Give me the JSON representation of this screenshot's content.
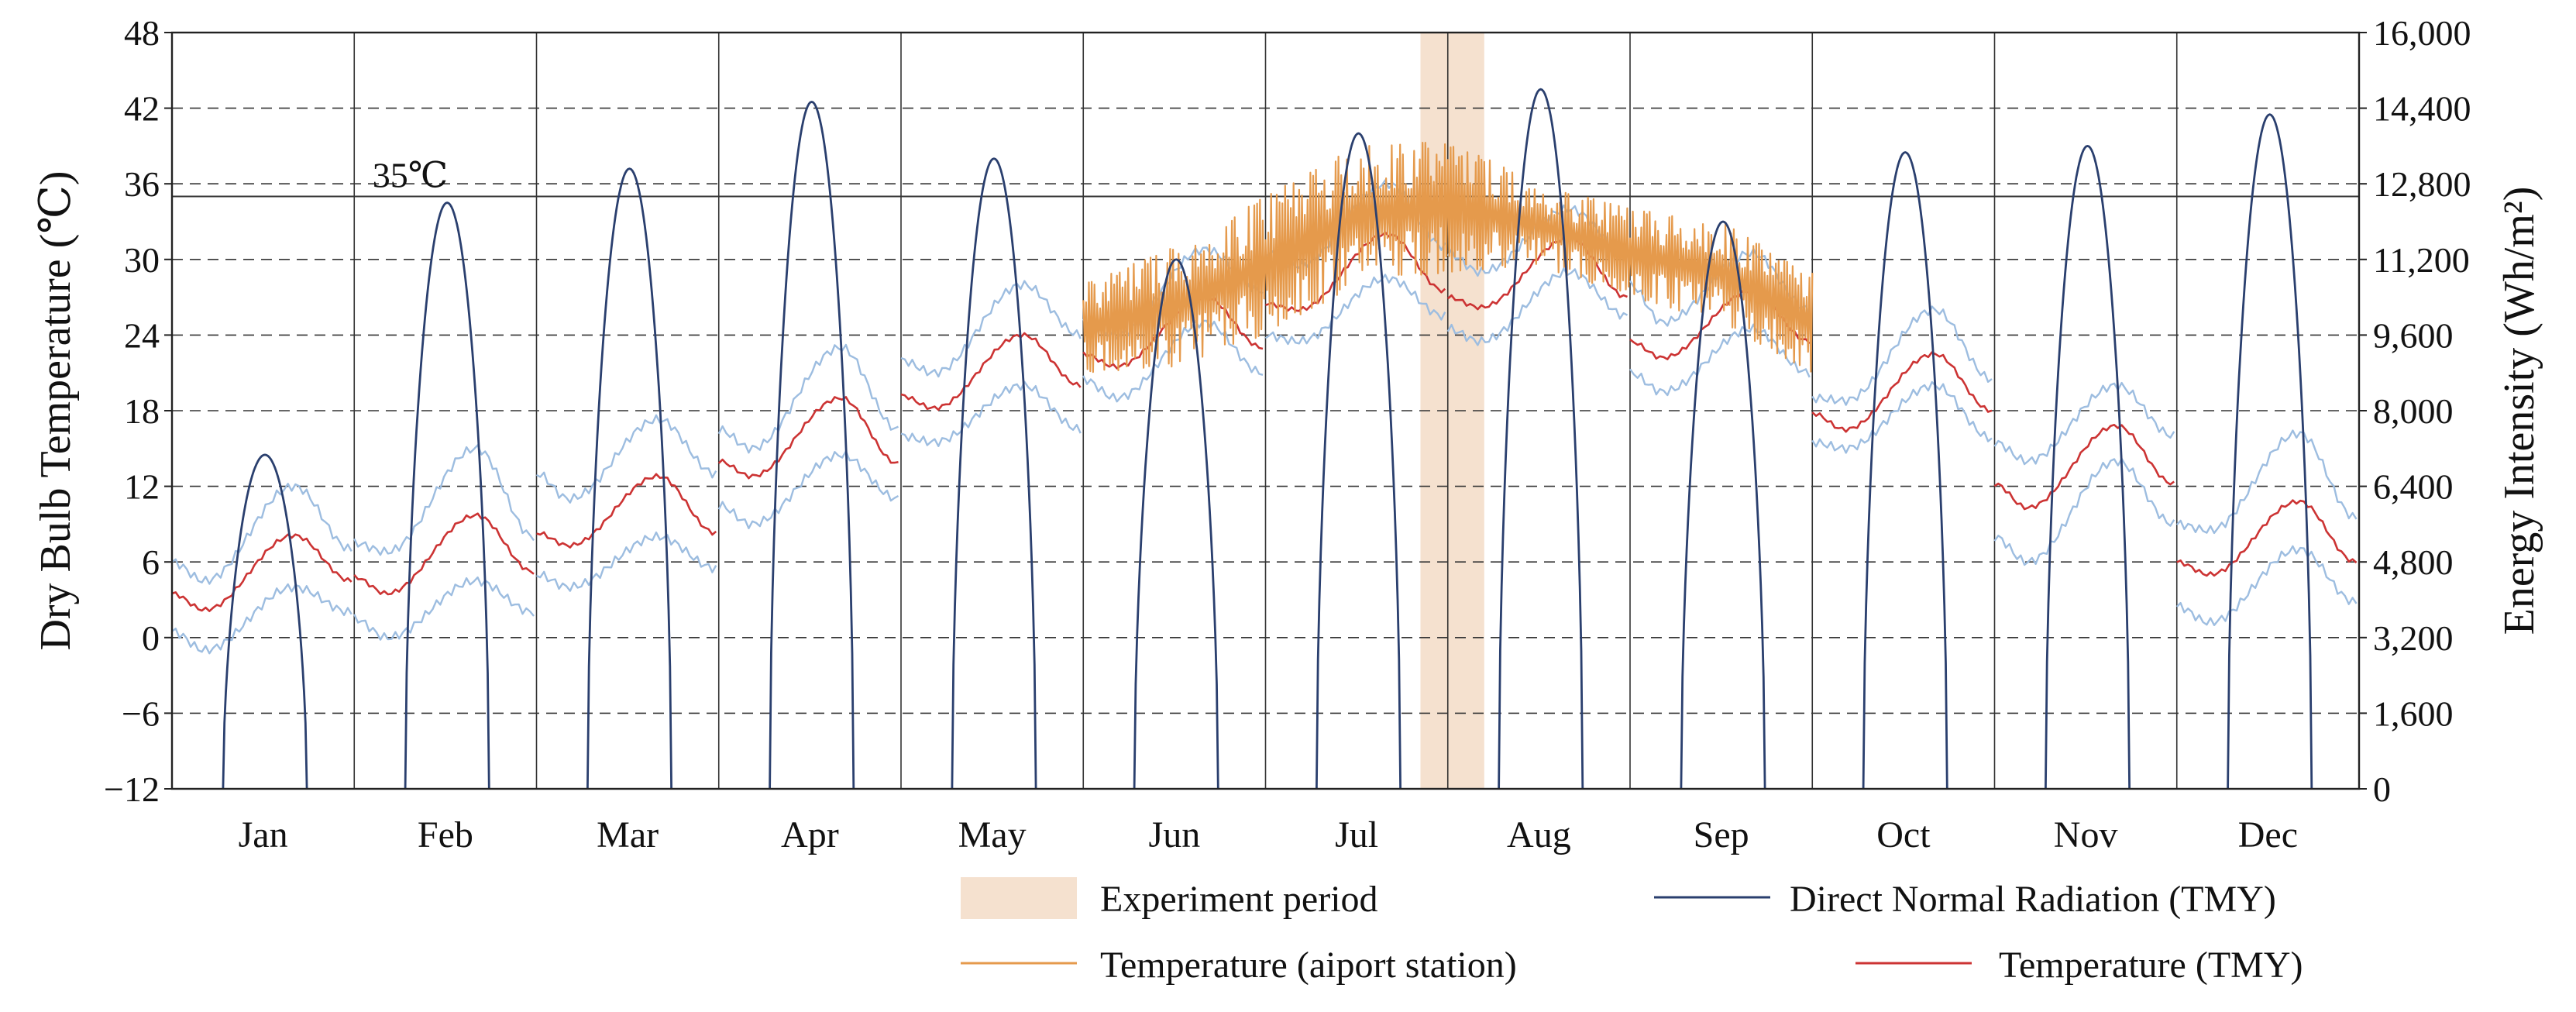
{
  "chart_data": {
    "type": "line",
    "title": "",
    "xlabel": "",
    "ylabel": "Dry Bulb Temperature (℃)",
    "y2label": "Energy Intensity (Wh/m²)",
    "categories": [
      "Jan",
      "Feb",
      "Mar",
      "Apr",
      "May",
      "Jun",
      "Jul",
      "Aug",
      "Sep",
      "Oct",
      "Nov",
      "Dec"
    ],
    "ylim": [
      -12,
      48
    ],
    "yticks": [
      -12,
      -6,
      0,
      6,
      12,
      18,
      24,
      30,
      36,
      42,
      48
    ],
    "ytick_labels": [
      "−12",
      "−6",
      "0",
      "6",
      "12",
      "18",
      "24",
      "30",
      "36",
      "42",
      "48"
    ],
    "y2lim": [
      0,
      16000
    ],
    "y2ticks": [
      0,
      1600,
      3200,
      4800,
      6400,
      8000,
      9600,
      11200,
      12800,
      14400,
      16000
    ],
    "y2tick_labels": [
      "0",
      "1,600",
      "3,200",
      "4,800",
      "6,400",
      "8,000",
      "9,600",
      "11,200",
      "12,800",
      "14,400",
      "16,000"
    ],
    "grid": "horizontal dashed",
    "reference_line": {
      "value": 35,
      "label": "35℃"
    },
    "experiment_period": {
      "month_start": 6.85,
      "month_end": 7.2
    },
    "legend": {
      "placement": "bottom",
      "items": [
        {
          "key": "exp",
          "label": "Experiment period",
          "color": "#f5e1cf"
        },
        {
          "key": "dnr",
          "label": "Direct Normal Radiation (TMY)",
          "color": "#2a3f6e"
        },
        {
          "key": "airport",
          "label": "Temperature (aiport station)",
          "color": "#e59a4c"
        },
        {
          "key": "tmy",
          "label": "Temperature (TMY)",
          "color": "#cc3333"
        }
      ]
    },
    "series": [
      {
        "name": "Temperature (TMY)",
        "key": "tmy",
        "axis": "left",
        "months": [
          {
            "start": 3.5,
            "min": 2.2,
            "peak": 8.1,
            "end": 4.5
          },
          {
            "start": 4.8,
            "min": 3.5,
            "peak": 9.7,
            "end": 5.2
          },
          {
            "start": 8.3,
            "min": 7.3,
            "peak": 12.8,
            "end": 8.3
          },
          {
            "start": 14.0,
            "min": 12.8,
            "peak": 19.0,
            "end": 13.8
          },
          {
            "start": 19.2,
            "min": 18.2,
            "peak": 24.0,
            "end": 20.0
          },
          {
            "start": 22.5,
            "min": 21.5,
            "peak": 27.0,
            "end": 23.0
          },
          {
            "start": 26.5,
            "min": 26.0,
            "peak": 32.0,
            "end": 27.5
          },
          {
            "start": 27.0,
            "min": 26.2,
            "peak": 31.7,
            "end": 27.0
          },
          {
            "start": 23.5,
            "min": 22.2,
            "peak": 27.5,
            "end": 23.5
          },
          {
            "start": 17.8,
            "min": 16.5,
            "peak": 22.5,
            "end": 18.0
          },
          {
            "start": 12.2,
            "min": 10.3,
            "peak": 16.8,
            "end": 12.2
          },
          {
            "start": 6.0,
            "min": 5.0,
            "peak": 10.8,
            "end": 6.0
          }
        ]
      },
      {
        "name": "Temperature band upper (TMY)",
        "key": "band_upper",
        "axis": "left",
        "months": [
          {
            "start": 6.0,
            "min": 4.5,
            "peak": 12.0,
            "end": 7.0
          },
          {
            "start": 7.5,
            "min": 6.8,
            "peak": 15.0,
            "end": 8.0
          },
          {
            "start": 13.0,
            "min": 11.0,
            "peak": 17.3,
            "end": 13.0
          },
          {
            "start": 16.5,
            "min": 15.0,
            "peak": 23.0,
            "end": 16.5
          },
          {
            "start": 22.0,
            "min": 21.0,
            "peak": 28.0,
            "end": 24.0
          },
          {
            "start": 25.0,
            "min": 24.0,
            "peak": 30.8,
            "end": 27.5
          },
          {
            "start": 30.5,
            "min": 29.5,
            "peak": 36.0,
            "end": 31.0
          },
          {
            "start": 30.5,
            "min": 29.0,
            "peak": 34.0,
            "end": 30.5
          },
          {
            "start": 28.0,
            "min": 25.0,
            "peak": 30.5,
            "end": 26.0
          },
          {
            "start": 19.0,
            "min": 18.8,
            "peak": 26.0,
            "end": 20.5
          },
          {
            "start": 15.5,
            "min": 14.0,
            "peak": 20.0,
            "end": 16.0
          },
          {
            "start": 9.0,
            "min": 8.5,
            "peak": 16.2,
            "end": 9.5
          }
        ]
      },
      {
        "name": "Temperature band lower (TMY)",
        "key": "band_lower",
        "axis": "left",
        "months": [
          {
            "start": 0.5,
            "min": -1.0,
            "peak": 4.0,
            "end": 2.0
          },
          {
            "start": 1.5,
            "min": 0.0,
            "peak": 4.5,
            "end": 2.0
          },
          {
            "start": 5.0,
            "min": 4.0,
            "peak": 8.0,
            "end": 5.5
          },
          {
            "start": 10.5,
            "min": 9.0,
            "peak": 14.5,
            "end": 11.0
          },
          {
            "start": 16.0,
            "min": 15.5,
            "peak": 20.0,
            "end": 16.5
          },
          {
            "start": 20.5,
            "min": 19.0,
            "peak": 25.0,
            "end": 21.0
          },
          {
            "start": 24.0,
            "min": 23.5,
            "peak": 28.5,
            "end": 25.5
          },
          {
            "start": 24.5,
            "min": 23.5,
            "peak": 29.0,
            "end": 25.5
          },
          {
            "start": 21.0,
            "min": 19.5,
            "peak": 24.5,
            "end": 21.0
          },
          {
            "start": 15.5,
            "min": 15.0,
            "peak": 20.0,
            "end": 15.8
          },
          {
            "start": 8.0,
            "min": 6.0,
            "peak": 14.0,
            "end": 9.0
          },
          {
            "start": 2.5,
            "min": 1.2,
            "peak": 7.0,
            "end": 2.8
          }
        ]
      },
      {
        "name": "Direct Normal Radiation (TMY)",
        "key": "dnr",
        "axis": "right",
        "months": [
          {
            "peak": 14.5,
            "rise_month": 0.3,
            "fall_month": 0.75
          },
          {
            "peak": 34.5,
            "rise_month": 0.3,
            "fall_month": 0.75
          },
          {
            "peak": 37.2,
            "rise_month": 0.3,
            "fall_month": 0.75
          },
          {
            "peak": 42.5,
            "rise_month": 0.3,
            "fall_month": 0.75
          },
          {
            "peak": 38.0,
            "rise_month": 0.3,
            "fall_month": 0.75
          },
          {
            "peak": 30.0,
            "rise_month": 0.3,
            "fall_month": 0.75
          },
          {
            "peak": 40.0,
            "rise_month": 0.3,
            "fall_month": 0.75
          },
          {
            "peak": 43.5,
            "rise_month": 0.3,
            "fall_month": 0.75
          },
          {
            "peak": 33.0,
            "rise_month": 0.3,
            "fall_month": 0.75
          },
          {
            "peak": 38.5,
            "rise_month": 0.3,
            "fall_month": 0.75
          },
          {
            "peak": 39.0,
            "rise_month": 0.3,
            "fall_month": 0.75
          },
          {
            "peak": 41.5,
            "rise_month": 0.3,
            "fall_month": 0.75
          }
        ],
        "peak_units": "℃ equivalent on left axis"
      },
      {
        "name": "Temperature (aiport station)",
        "key": "airport",
        "axis": "left",
        "x_range_months": [
          5.0,
          9.0
        ],
        "envelope": [
          {
            "month": 5.0,
            "low": 21.0,
            "high": 28.0
          },
          {
            "month": 5.5,
            "low": 21.5,
            "high": 31.0
          },
          {
            "month": 6.0,
            "low": 24.0,
            "high": 35.0
          },
          {
            "month": 6.5,
            "low": 28.0,
            "high": 39.0
          },
          {
            "month": 7.0,
            "low": 29.0,
            "high": 39.5
          },
          {
            "month": 7.5,
            "low": 29.5,
            "high": 36.0
          },
          {
            "month": 8.0,
            "low": 27.0,
            "high": 34.0
          },
          {
            "month": 8.5,
            "low": 25.0,
            "high": 33.0
          },
          {
            "month": 9.0,
            "low": 21.0,
            "high": 29.0
          }
        ]
      }
    ]
  }
}
